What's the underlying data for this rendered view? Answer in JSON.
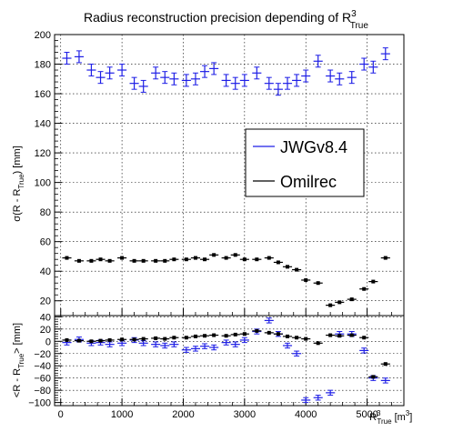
{
  "colors": {
    "jwg": "#1f1fe6",
    "omilrec": "#000000",
    "grid": "#000000"
  },
  "chart_data": {
    "title": "Radius reconstruction precision depending of R",
    "title_superscript": "3",
    "title_subscript": "True",
    "x_axis": {
      "label_main": "R",
      "label_sup": "3",
      "label_sub": "True",
      "label_unit": "[m",
      "label_unit_sup": "3",
      "label_close": "]",
      "range": [
        -100,
        5600
      ],
      "ticks": [
        0,
        1000,
        2000,
        3000,
        4000,
        5000
      ],
      "tick_labels": [
        "0",
        "1000",
        "2000",
        "3000",
        "4000",
        "5000"
      ]
    },
    "panels": [
      {
        "id": "top",
        "type": "scatter",
        "ylabel_pre": "σ(R - R",
        "ylabel_sub": "True",
        "ylabel_post": ") [mm]",
        "ylim": [
          10,
          200
        ],
        "yticks": [
          20,
          40,
          60,
          80,
          100,
          120,
          140,
          160,
          180,
          200
        ],
        "ytick_labels": [
          "20",
          "40",
          "60",
          "80",
          "100",
          "120",
          "140",
          "160",
          "180",
          "200"
        ],
        "grid": true,
        "series": [
          {
            "name": "JWGv8.4",
            "color": "#1f1fe6",
            "x": [
              100,
              300,
              500,
              650,
              800,
              1000,
              1200,
              1350,
              1550,
              1700,
              1850,
              2050,
              2200,
              2350,
              2500,
              2700,
              2850,
              3000,
              3200,
              3400,
              3550,
              3700,
              3850,
              4000,
              4200,
              4400,
              4550,
              4750,
              4950,
              5100,
              5300
            ],
            "y": [
              184,
              185,
              176,
              171,
              174,
              176,
              167,
              165,
              174,
              171,
              170,
              169,
              170,
              175,
              177,
              169,
              167,
              169,
              174,
              167,
              163,
              167,
              169,
              172,
              182,
              172,
              170,
              171,
              180,
              178,
              187
            ],
            "yerr": [
              4,
              4,
              4,
              4,
              4,
              4,
              4,
              4,
              4,
              4,
              4,
              4,
              4,
              4,
              4,
              4,
              4,
              4,
              4,
              4,
              4,
              4,
              4,
              4,
              4,
              4,
              4,
              4,
              4,
              4,
              4
            ]
          },
          {
            "name": "Omilrec",
            "color": "#000000",
            "x": [
              100,
              300,
              500,
              650,
              800,
              1000,
              1200,
              1350,
              1550,
              1700,
              1850,
              2050,
              2200,
              2350,
              2500,
              2700,
              2850,
              3000,
              3200,
              3400,
              3550,
              3700,
              3850,
              4000,
              4200,
              4400,
              4550,
              4750,
              4950,
              5100,
              5300
            ],
            "y": [
              49,
              47,
              47,
              48,
              47,
              49,
              47,
              47,
              47,
              47,
              48,
              48,
              49,
              48,
              51,
              49,
              51,
              48,
              48,
              49,
              46,
              43,
              41,
              34,
              32,
              17,
              19,
              21,
              28,
              33,
              49
            ],
            "yerr": [
              1,
              1,
              1,
              1,
              1,
              1,
              1,
              1,
              1,
              1,
              1,
              1,
              1,
              1,
              1,
              1,
              1,
              1,
              1,
              1,
              1,
              1,
              1,
              1,
              1,
              1,
              1,
              1,
              1,
              1,
              1
            ]
          }
        ]
      },
      {
        "id": "bottom",
        "type": "scatter",
        "ylabel_pre": "<R - R",
        "ylabel_sub": "True",
        "ylabel_post": "> [mm]",
        "ylim": [
          -105,
          42
        ],
        "yticks": [
          -100,
          -80,
          -60,
          -40,
          -20,
          0,
          20,
          40
        ],
        "ytick_labels": [
          "−100",
          "−80",
          "−60",
          "−40",
          "−20",
          "0",
          "20",
          "40"
        ],
        "grid": true,
        "series": [
          {
            "name": "JWGv8.4",
            "color": "#1f1fe6",
            "x": [
              100,
              300,
              500,
              650,
              800,
              1000,
              1200,
              1350,
              1550,
              1700,
              1850,
              2050,
              2200,
              2350,
              2500,
              2700,
              2850,
              3000,
              3200,
              3400,
              3550,
              3700,
              3850,
              4000,
              4200,
              4400,
              4550,
              4750,
              4950,
              5100,
              5300
            ],
            "y": [
              -2,
              3,
              -3,
              -2,
              -5,
              -3,
              2,
              -3,
              -5,
              -7,
              -5,
              -14,
              -12,
              -8,
              -10,
              -2,
              -5,
              2,
              16,
              34,
              12,
              -7,
              -20,
              -96,
              -92,
              -84,
              12,
              12,
              -15,
              -60,
              -64
            ],
            "yerr": [
              4,
              4,
              4,
              4,
              4,
              4,
              4,
              4,
              4,
              4,
              4,
              4,
              4,
              4,
              4,
              4,
              4,
              4,
              4,
              4,
              4,
              4,
              4,
              4,
              4,
              4,
              4,
              4,
              4,
              4,
              4
            ]
          },
          {
            "name": "Omilrec",
            "color": "#000000",
            "x": [
              100,
              300,
              500,
              650,
              800,
              1000,
              1200,
              1350,
              1550,
              1700,
              1850,
              2050,
              2200,
              2350,
              2500,
              2700,
              2850,
              3000,
              3200,
              3400,
              3550,
              3700,
              3850,
              4000,
              4200,
              4400,
              4550,
              4750,
              4950,
              5100,
              5300
            ],
            "y": [
              2,
              1,
              0,
              1,
              2,
              3,
              3,
              4,
              5,
              4,
              6,
              6,
              8,
              9,
              10,
              9,
              11,
              12,
              17,
              14,
              12,
              8,
              6,
              4,
              -3,
              10,
              9,
              10,
              6,
              -58,
              -37
            ],
            "yerr": [
              1,
              1,
              1,
              1,
              1,
              1,
              1,
              1,
              1,
              1,
              1,
              1,
              1,
              1,
              1,
              1,
              1,
              1,
              1,
              1,
              1,
              1,
              1,
              1,
              1,
              1,
              1,
              1,
              1,
              1,
              1
            ]
          }
        ]
      }
    ],
    "legend": {
      "placement": "center-right of top panel",
      "entries": [
        {
          "label": "JWGv8.4",
          "color": "#1f1fe6"
        },
        {
          "label": "Omilrec",
          "color": "#000000"
        }
      ]
    }
  }
}
